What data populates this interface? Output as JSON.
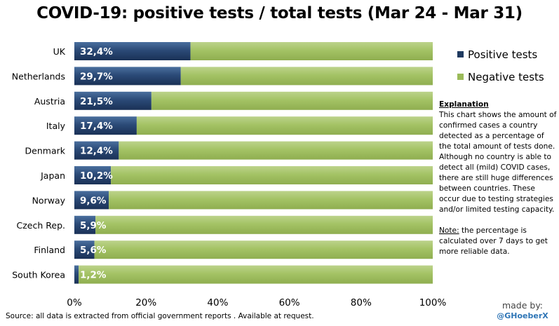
{
  "chart_data": {
    "type": "bar",
    "orientation": "horizontal",
    "stacked": true,
    "title": "COVID-19: positive tests / total tests (Mar 24 - Mar 31)",
    "categories": [
      "UK",
      "Netherlands",
      "Austria",
      "Italy",
      "Denmark",
      "Japan",
      "Norway",
      "Czech Rep.",
      "Finland",
      "South Korea"
    ],
    "series": [
      {
        "name": "Positive tests",
        "color": "#1f3a60",
        "values": [
          32.4,
          29.7,
          21.5,
          17.4,
          12.4,
          10.2,
          9.6,
          5.9,
          5.6,
          1.2
        ]
      },
      {
        "name": "Negative tests",
        "color": "#9bbb59",
        "values": [
          67.6,
          70.3,
          78.5,
          82.6,
          87.6,
          89.8,
          90.4,
          94.1,
          94.4,
          98.8
        ]
      }
    ],
    "data_labels": [
      "32,4%",
      "29,7%",
      "21,5%",
      "17,4%",
      "12,4%",
      "10,2%",
      "9,6%",
      "5,9%",
      "5,6%",
      "1,2%"
    ],
    "x_ticks": [
      "0%",
      "20%",
      "40%",
      "60%",
      "80%",
      "100%"
    ],
    "xlim": [
      0,
      100
    ],
    "grid": false,
    "legend_position": "right"
  },
  "explanation": {
    "heading": "Explanation",
    "body": "This chart shows the amount of confirmed cases a country detected  as a percentage of the total amount of tests done. Although no country is able to detect all (mild) COVID cases, there are still huge differences between countries. These occur due to testing strategies and/or limited testing capacity.",
    "note_label": "Note:",
    "note_text": " the percentage  is calculated over 7 days to get more reliable data."
  },
  "source": "Source:  all data is extracted from official government reports . Available at request.",
  "credit": {
    "line1": "made by:",
    "line2": "@GHoeberX"
  }
}
